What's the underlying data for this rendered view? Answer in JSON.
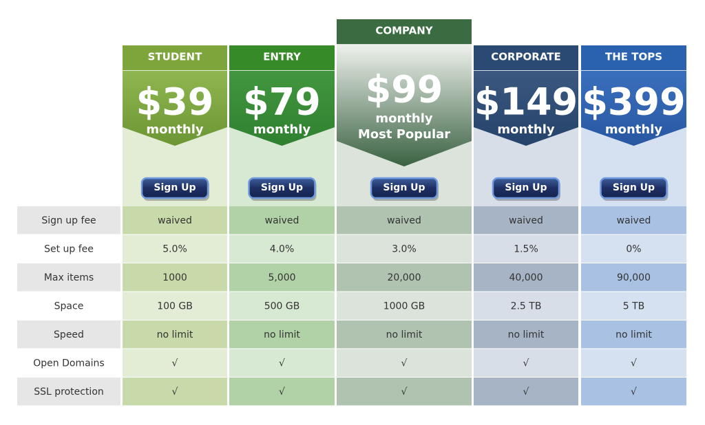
{
  "plans": [
    {
      "name": "STUDENT",
      "price": "$39",
      "period": "monthly",
      "button": "Sign Up"
    },
    {
      "name": "ENTRY",
      "price": "$79",
      "period": "monthly",
      "button": "Sign Up"
    },
    {
      "name": "COMPANY",
      "price": "$99",
      "period": "monthly",
      "badge": "Most Popular",
      "button": "Sign Up"
    },
    {
      "name": "CORPORATE",
      "price": "$149",
      "period": "monthly",
      "button": "Sign Up"
    },
    {
      "name": "THE TOPS",
      "price": "$399",
      "period": "monthly",
      "button": "Sign Up"
    }
  ],
  "features": [
    {
      "label": "Sign up fee",
      "values": [
        "waived",
        "waived",
        "waived",
        "waived",
        "waived"
      ]
    },
    {
      "label": "Set up fee",
      "values": [
        "5.0%",
        "4.0%",
        "3.0%",
        "1.5%",
        "0%"
      ]
    },
    {
      "label": "Max items",
      "values": [
        "1000",
        "5,000",
        "20,000",
        "40,000",
        "90,000"
      ]
    },
    {
      "label": "Space",
      "values": [
        "100 GB",
        "500 GB",
        "1000 GB",
        "2.5 TB",
        "5 TB"
      ]
    },
    {
      "label": "Speed",
      "values": [
        "no limit",
        "no limit",
        "no limit",
        "no limit",
        "no limit"
      ]
    },
    {
      "label": "Open Domains",
      "values": [
        "√",
        "√",
        "√",
        "√",
        "√"
      ]
    },
    {
      "label": "SSL protection",
      "values": [
        "√",
        "√",
        "√",
        "√",
        "√"
      ]
    }
  ]
}
